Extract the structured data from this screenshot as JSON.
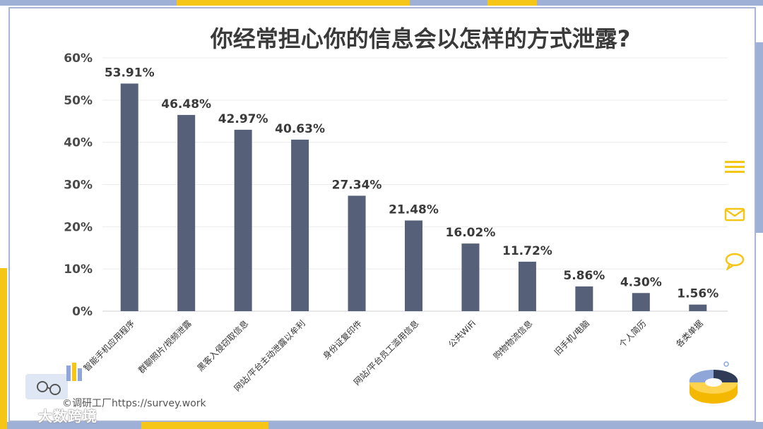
{
  "title": "你经常担心你的信息会以怎样的方式泄露?",
  "watermark": "©调研工厂https://survey.work",
  "brand": "大数跨境",
  "colors": {
    "bar": "#566079",
    "accent_yellow": "#f5c518",
    "accent_blue": "#9fb0d6"
  },
  "chart_data": {
    "type": "bar",
    "title": "你经常担心你的信息会以怎样的方式泄露?",
    "categories": [
      "智能手机应用程序",
      "群聊照片/视频泄露",
      "黑客入侵窃取信息",
      "网站/平台主动泄露以牟利",
      "身份证复印件",
      "网站/平台员工滥用信息",
      "公共WiFi",
      "购物物流信息",
      "旧手机/电脑",
      "个人简历",
      "各类单据"
    ],
    "values": [
      53.91,
      46.48,
      42.97,
      40.63,
      27.34,
      21.48,
      16.02,
      11.72,
      5.86,
      4.3,
      1.56
    ],
    "value_labels": [
      "53.91%",
      "46.48%",
      "42.97%",
      "40.63%",
      "27.34%",
      "21.48%",
      "16.02%",
      "11.72%",
      "5.86%",
      "4.30%",
      "1.56%"
    ],
    "ylim": [
      0,
      60
    ],
    "yticks": [
      "0%",
      "10%",
      "20%",
      "30%",
      "40%",
      "50%",
      "60%"
    ],
    "grid": true,
    "legend": "none"
  },
  "icons": [
    "menu-lines-icon",
    "mail-icon",
    "chat-bubble-icon"
  ]
}
